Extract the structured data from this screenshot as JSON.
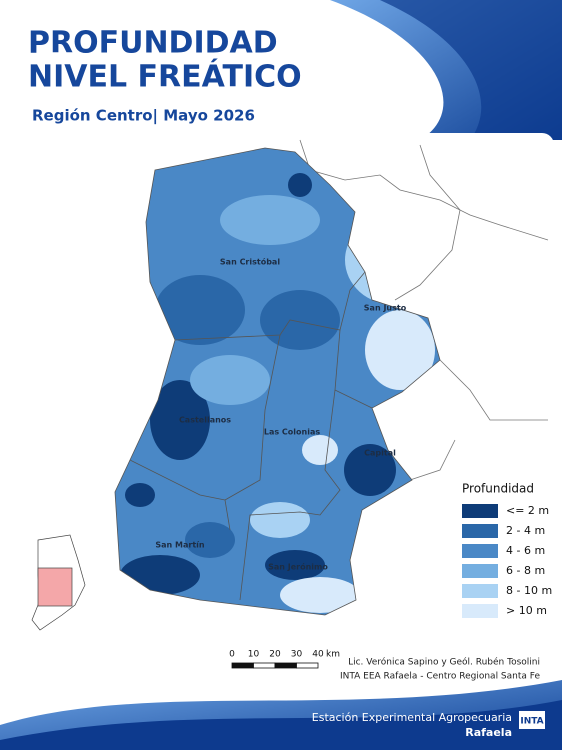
{
  "header": {
    "title_lines": [
      "PROFUNDIDAD",
      "NIVEL FREÁTICO"
    ],
    "subtitle": "Región Centro| Mayo 2026"
  },
  "map": {
    "departments": [
      "San Cristóbal",
      "San Justo",
      "Castellanos",
      "Las Colonias",
      "Capital",
      "San Martín",
      "San Jerónimo"
    ],
    "legend": {
      "title": "Profundidad",
      "items": [
        {
          "label": "<= 2 m",
          "color": "#0e3c78"
        },
        {
          "label": "2 - 4 m",
          "color": "#2a67a8"
        },
        {
          "label": "4 - 6 m",
          "color": "#4a88c6"
        },
        {
          "label": "6 - 8 m",
          "color": "#74aee0"
        },
        {
          "label": "8 - 10 m",
          "color": "#a9d2f3"
        },
        {
          "label": "> 10 m",
          "color": "#d8eafb"
        }
      ]
    },
    "scale_bar": {
      "ticks": [
        0,
        10,
        20,
        30,
        40
      ],
      "unit": "km"
    }
  },
  "credits": [
    "Lic. Verónica Sapino y Geól. Rubén Tosolini",
    "INTA EEA Rafaela - Centro Regional Santa Fe"
  ],
  "footer": {
    "line1": "Estación Experimental Agropecuaria",
    "line2": "Rafaela",
    "logo": "INTA"
  }
}
